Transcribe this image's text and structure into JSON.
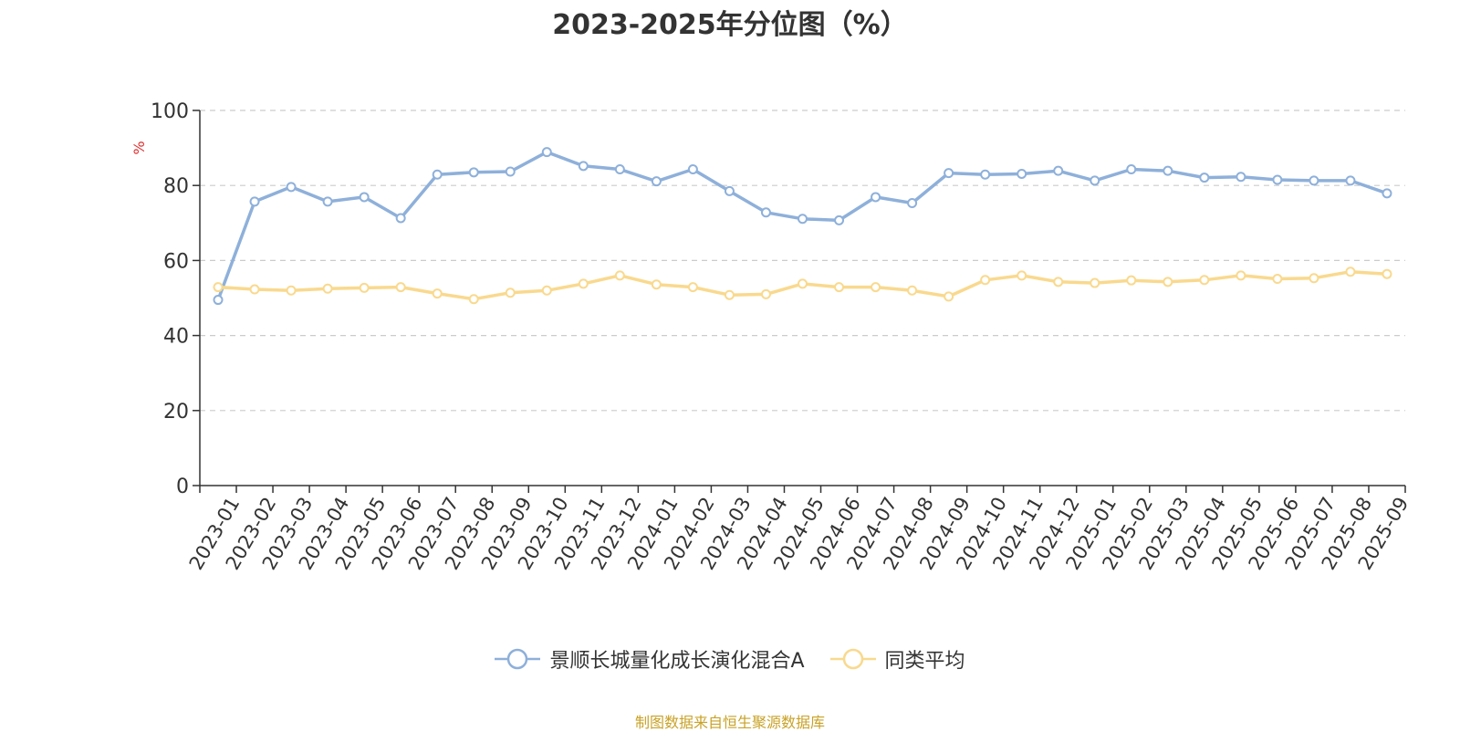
{
  "chart_data": {
    "type": "line",
    "title": "2023-2025年分位图（%）",
    "ylabel": "%",
    "xlabel": "",
    "ylim": [
      0,
      100
    ],
    "yticks": [
      0,
      20,
      40,
      60,
      80,
      100
    ],
    "grid": true,
    "legend_position": "bottom-center",
    "x": [
      "2023-01",
      "2023-02",
      "2023-03",
      "2023-04",
      "2023-05",
      "2023-06",
      "2023-07",
      "2023-08",
      "2023-09",
      "2023-10",
      "2023-11",
      "2023-12",
      "2024-01",
      "2024-02",
      "2024-03",
      "2024-04",
      "2024-05",
      "2024-06",
      "2024-07",
      "2024-08",
      "2024-09",
      "2024-10",
      "2024-11",
      "2024-12",
      "2025-01",
      "2025-02",
      "2025-03",
      "2025-04",
      "2025-05",
      "2025-06",
      "2025-07",
      "2025-08",
      "2025-09"
    ],
    "series": [
      {
        "name": "景顺长城量化成长演化混合A",
        "color": "#8eb0da",
        "values": [
          49.5,
          75.7,
          79.6,
          75.7,
          76.9,
          71.3,
          82.9,
          83.5,
          83.7,
          88.9,
          85.2,
          84.3,
          81.1,
          84.3,
          78.5,
          72.8,
          71.1,
          70.7,
          76.9,
          75.3,
          83.3,
          82.9,
          83.1,
          83.9,
          81.3,
          84.3,
          83.9,
          82.1,
          82.3,
          81.5,
          81.3,
          81.3,
          77.9
        ]
      },
      {
        "name": "同类平均",
        "color": "#f9d98e",
        "values": [
          52.9,
          52.3,
          52.0,
          52.5,
          52.7,
          52.9,
          51.2,
          49.7,
          51.4,
          52.0,
          53.8,
          56.0,
          53.6,
          52.9,
          50.8,
          51.0,
          53.8,
          52.9,
          52.9,
          52.0,
          50.4,
          54.8,
          56.0,
          54.3,
          54.0,
          54.7,
          54.3,
          54.8,
          56.0,
          55.1,
          55.3,
          57.0,
          56.4
        ]
      }
    ]
  },
  "source_note": "制图数据来自恒生聚源数据库",
  "colors": {
    "axis": "#333333",
    "grid": "#cccccc",
    "ylabel": "#e03131",
    "source": "#c9a227"
  }
}
